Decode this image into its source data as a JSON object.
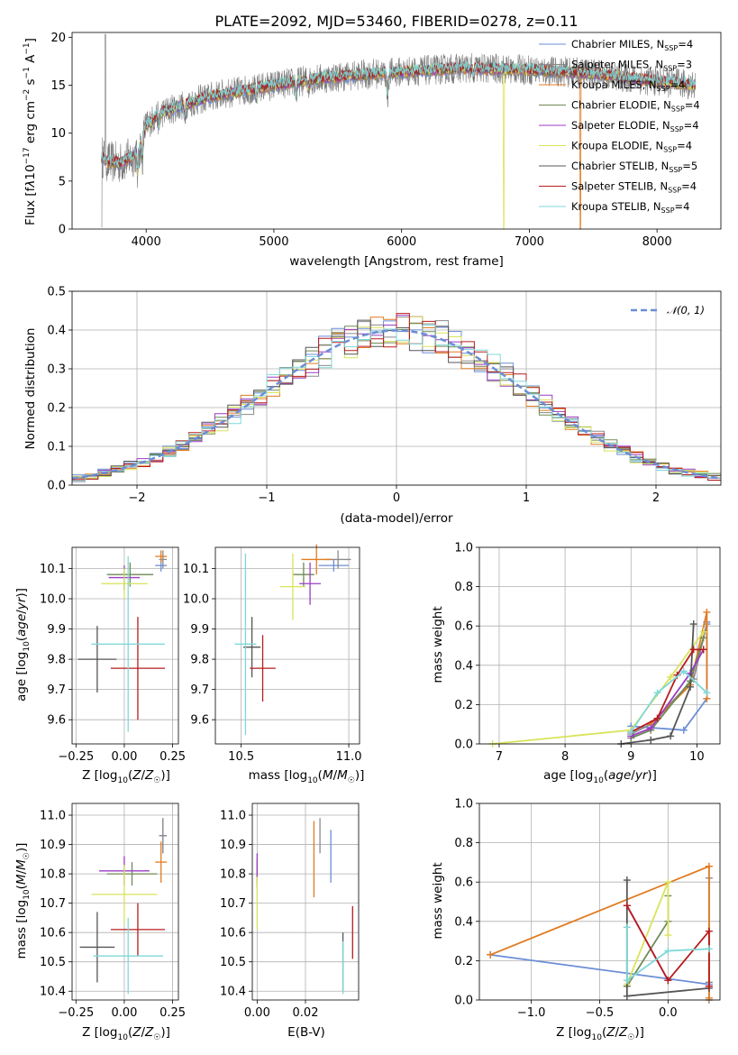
{
  "figure": {
    "title": "PLATE=2092, MJD=53460, FIBERID=0278, z=0.11",
    "colors": {
      "Chabrier MILES": "#6b8ed6",
      "Salpeter MILES": "#8a8a8a",
      "Kroupa MILES": "#e07b22",
      "Chabrier ELODIE": "#6e8a53",
      "Salpeter ELODIE": "#9b3cc4",
      "Kroupa ELODIE": "#d9e35a",
      "Chabrier STELIB": "#555555",
      "Salpeter STELIB": "#b71c1c",
      "Kroupa STELIB": "#7fd8d8"
    }
  },
  "chart_data": [
    {
      "type": "line",
      "panel": "spectrum",
      "title": "PLATE=2092, MJD=53460, FIBERID=0278, z=0.11",
      "xlabel": "wavelength [Angstrom, rest frame]",
      "ylabel": "Flux [f_λ 10^-17 erg cm^-2 s^-1 A^-1]",
      "xlim": [
        3420,
        8500
      ],
      "ylim": [
        0,
        20.5
      ],
      "xticks": [
        4000,
        5000,
        6000,
        7000,
        8000
      ],
      "yticks": [
        0,
        5,
        10,
        15,
        20
      ],
      "grid": false,
      "legend_position": "upper right",
      "legend": [
        {
          "label": "Chabrier MILES",
          "nssp": "4"
        },
        {
          "label": "Salpeter MILES",
          "nssp": "3"
        },
        {
          "label": "Kroupa MILES",
          "nssp": "4"
        },
        {
          "label": "Chabrier ELODIE",
          "nssp": "4"
        },
        {
          "label": "Salpeter ELODIE",
          "nssp": "4"
        },
        {
          "label": "Kroupa ELODIE",
          "nssp": "4"
        },
        {
          "label": "Chabrier STELIB",
          "nssp": "5"
        },
        {
          "label": "Salpeter STELIB",
          "nssp": "4"
        },
        {
          "label": "Kroupa STELIB",
          "nssp": "4"
        }
      ],
      "continuum": {
        "x": [
          3650,
          3700,
          3800,
          3900,
          3950,
          4000,
          4100,
          4200,
          4300,
          4500,
          4700,
          5000,
          5300,
          5600,
          6000,
          6500,
          7000,
          7500,
          8000,
          8300
        ],
        "y": [
          7.6,
          7.0,
          6.9,
          7.6,
          8.6,
          10.8,
          12.0,
          12.5,
          13.0,
          13.8,
          14.3,
          15.0,
          15.6,
          16.0,
          16.4,
          16.8,
          16.6,
          16.2,
          15.4,
          15.0
        ]
      },
      "absorption_lines": [
        {
          "x": 3934,
          "depth": 2.5
        },
        {
          "x": 3969,
          "depth": 2.2
        },
        {
          "x": 4102,
          "depth": 1.2
        },
        {
          "x": 4300,
          "depth": 1.5
        },
        {
          "x": 4861,
          "depth": 1.1
        },
        {
          "x": 5175,
          "depth": 1.5
        },
        {
          "x": 5270,
          "depth": 0.7
        },
        {
          "x": 5890,
          "depth": 2.5
        },
        {
          "x": 6563,
          "depth": 1.0
        }
      ]
    },
    {
      "type": "histogram",
      "panel": "residuals",
      "xlabel": "(data-model)/error",
      "ylabel": "Normed distribution",
      "xlim": [
        -2.5,
        2.5
      ],
      "ylim": [
        0,
        0.5
      ],
      "xticks": [
        -2,
        -1,
        0,
        1,
        2
      ],
      "yticks": [
        0.0,
        0.1,
        0.2,
        0.3,
        0.4,
        0.5
      ],
      "grid": true,
      "bin_width": 0.1,
      "legend_position": "upper right",
      "reference_curve": {
        "label": "N(0,1)",
        "mean": 0,
        "sigma": 1
      }
    },
    {
      "type": "scatter",
      "panel": "age-vs-Z",
      "xlabel": "Z [log10(Z/Z☉)]",
      "ylabel": "age [log10(age/yr)]",
      "xlim": [
        -0.27,
        0.28
      ],
      "ylim": [
        9.52,
        10.17
      ],
      "xticks": [
        -0.25,
        0.0,
        0.25
      ],
      "yticks": [
        9.6,
        9.7,
        9.8,
        9.9,
        10.0,
        10.1
      ],
      "grid": true,
      "points": [
        {
          "model": "Chabrier MILES",
          "x": 0.19,
          "y": 10.11,
          "xerr": 0.03,
          "yerr": 0.02
        },
        {
          "model": "Salpeter MILES",
          "x": 0.2,
          "y": 10.13,
          "xerr": 0.02,
          "yerr": 0.03
        },
        {
          "model": "Kroupa MILES",
          "x": 0.19,
          "y": 10.14,
          "xerr": 0.03,
          "yerr": 0.02
        },
        {
          "model": "Chabrier ELODIE",
          "x": 0.03,
          "y": 10.08,
          "xerr": 0.12,
          "yerr": 0.04
        },
        {
          "model": "Salpeter ELODIE",
          "x": 0.0,
          "y": 10.07,
          "xerr": 0.08,
          "yerr": 0.04
        },
        {
          "model": "Kroupa ELODIE",
          "x": 0.0,
          "y": 10.05,
          "xerr": 0.12,
          "yerr": 0.05
        },
        {
          "model": "Chabrier STELIB",
          "x": -0.14,
          "y": 9.8,
          "xerr": 0.1,
          "yerr": 0.11
        },
        {
          "model": "Salpeter STELIB",
          "x": 0.07,
          "y": 9.77,
          "xerr": 0.14,
          "yerr": 0.17
        },
        {
          "model": "Kroupa STELIB",
          "x": 0.02,
          "y": 9.85,
          "xerr": 0.19,
          "yerr": 0.29
        }
      ]
    },
    {
      "type": "scatter",
      "panel": "age-vs-mass",
      "xlabel": "mass [log10(M/M☉)]",
      "ylabel": "",
      "xlim": [
        10.38,
        11.05
      ],
      "ylim": [
        9.52,
        10.17
      ],
      "xticks": [
        10.5,
        11.0
      ],
      "yticks": [
        9.6,
        9.7,
        9.8,
        9.9,
        10.0,
        10.1
      ],
      "grid": true,
      "points": [
        {
          "model": "Chabrier MILES",
          "x": 10.93,
          "y": 10.11,
          "xerr": 0.07,
          "yerr": 0.02
        },
        {
          "model": "Salpeter MILES",
          "x": 10.95,
          "y": 10.13,
          "xerr": 0.06,
          "yerr": 0.03
        },
        {
          "model": "Kroupa MILES",
          "x": 10.85,
          "y": 10.13,
          "xerr": 0.07,
          "yerr": 0.05
        },
        {
          "model": "Chabrier ELODIE",
          "x": 10.79,
          "y": 10.08,
          "xerr": 0.05,
          "yerr": 0.04
        },
        {
          "model": "Salpeter ELODIE",
          "x": 10.82,
          "y": 10.05,
          "xerr": 0.05,
          "yerr": 0.07
        },
        {
          "model": "Kroupa ELODIE",
          "x": 10.74,
          "y": 10.04,
          "xerr": 0.06,
          "yerr": 0.11
        },
        {
          "model": "Chabrier STELIB",
          "x": 10.55,
          "y": 9.84,
          "xerr": 0.04,
          "yerr": 0.1
        },
        {
          "model": "Salpeter STELIB",
          "x": 10.6,
          "y": 9.77,
          "xerr": 0.06,
          "yerr": 0.11
        },
        {
          "model": "Kroupa STELIB",
          "x": 10.52,
          "y": 9.85,
          "xerr": 0.05,
          "yerr": 0.3
        }
      ]
    },
    {
      "type": "line",
      "panel": "mass-weight-vs-age",
      "xlabel": "age [log10(age/yr)]",
      "ylabel": "mass weight",
      "xlim": [
        6.7,
        10.35
      ],
      "ylim": [
        0,
        1.0
      ],
      "xticks": [
        7,
        8,
        9,
        10
      ],
      "yticks": [
        0.0,
        0.2,
        0.4,
        0.6,
        0.8,
        1.0
      ],
      "grid": true,
      "series": [
        {
          "model": "Chabrier MILES",
          "x": [
            9.0,
            9.8,
            10.15,
            10.15
          ],
          "y": [
            0.09,
            0.07,
            0.23,
            0.62
          ]
        },
        {
          "model": "Salpeter MILES",
          "x": [
            9.0,
            9.3,
            9.95,
            10.15
          ],
          "y": [
            0.05,
            0.1,
            0.33,
            0.61
          ]
        },
        {
          "model": "Kroupa MILES",
          "x": [
            9.3,
            9.9,
            10.15,
            10.15
          ],
          "y": [
            0.1,
            0.3,
            0.67,
            0.23
          ]
        },
        {
          "model": "Chabrier ELODIE",
          "x": [
            9.0,
            9.3,
            9.9,
            10.1
          ],
          "y": [
            0.03,
            0.07,
            0.32,
            0.54
          ]
        },
        {
          "model": "Salpeter ELODIE",
          "x": [
            9.0,
            9.3,
            9.9,
            10.1
          ],
          "y": [
            0.04,
            0.08,
            0.36,
            0.48
          ]
        },
        {
          "model": "Kroupa ELODIE",
          "x": [
            6.9,
            9.0,
            9.6,
            10.1
          ],
          "y": [
            0.0,
            0.07,
            0.34,
            0.57
          ]
        },
        {
          "model": "Chabrier STELIB",
          "x": [
            8.85,
            9.3,
            9.6,
            9.9,
            9.95
          ],
          "y": [
            0.0,
            0.02,
            0.04,
            0.29,
            0.61
          ]
        },
        {
          "model": "Salpeter STELIB",
          "x": [
            9.0,
            9.4,
            9.7,
            9.95,
            10.1
          ],
          "y": [
            0.06,
            0.13,
            0.35,
            0.48,
            0.48
          ]
        },
        {
          "model": "Kroupa STELIB",
          "x": [
            9.0,
            9.4,
            9.8,
            10.15
          ],
          "y": [
            0.06,
            0.26,
            0.37,
            0.26
          ]
        }
      ]
    },
    {
      "type": "scatter",
      "panel": "mass-vs-Z",
      "xlabel": "Z [log10(Z/Z☉)]",
      "ylabel": "mass [log10(M/M☉)]",
      "xlim": [
        -0.27,
        0.28
      ],
      "ylim": [
        10.37,
        11.04
      ],
      "xticks": [
        -0.25,
        0.0,
        0.25
      ],
      "yticks": [
        10.4,
        10.5,
        10.6,
        10.7,
        10.8,
        10.9,
        11.0
      ],
      "grid": true,
      "points": [
        {
          "model": "Chabrier MILES",
          "x": 0.2,
          "y": 10.93,
          "xerr": 0.02,
          "yerr": 0.06
        },
        {
          "model": "Salpeter MILES",
          "x": 0.2,
          "y": 10.93,
          "xerr": 0.02,
          "yerr": 0.06
        },
        {
          "model": "Kroupa MILES",
          "x": 0.19,
          "y": 10.84,
          "xerr": 0.03,
          "yerr": 0.07
        },
        {
          "model": "Chabrier ELODIE",
          "x": 0.04,
          "y": 10.8,
          "xerr": 0.13,
          "yerr": 0.04
        },
        {
          "model": "Salpeter ELODIE",
          "x": 0.0,
          "y": 10.81,
          "xerr": 0.13,
          "yerr": 0.05
        },
        {
          "model": "Kroupa ELODIE",
          "x": 0.0,
          "y": 10.73,
          "xerr": 0.17,
          "yerr": 0.1
        },
        {
          "model": "Chabrier STELIB",
          "x": -0.14,
          "y": 10.55,
          "xerr": 0.09,
          "yerr": 0.12
        },
        {
          "model": "Salpeter STELIB",
          "x": 0.07,
          "y": 10.61,
          "xerr": 0.14,
          "yerr": 0.09
        },
        {
          "model": "Kroupa STELIB",
          "x": 0.02,
          "y": 10.52,
          "xerr": 0.18,
          "yerr": 0.13
        }
      ]
    },
    {
      "type": "scatter",
      "panel": "mass-vs-EBV",
      "xlabel": "E(B-V)",
      "ylabel": "",
      "xlim": [
        -0.002,
        0.042
      ],
      "ylim": [
        10.37,
        11.04
      ],
      "xticks": [
        0.0,
        0.02
      ],
      "yticks": [
        10.4,
        10.5,
        10.6,
        10.7,
        10.8,
        10.9,
        11.0
      ],
      "grid": true,
      "points": [
        {
          "model": "Chabrier MILES",
          "x": 0.0305,
          "y": 10.86,
          "yerr": 0.09
        },
        {
          "model": "Salpeter MILES",
          "x": 0.026,
          "y": 10.93,
          "yerr": 0.06
        },
        {
          "model": "Kroupa MILES",
          "x": 0.0235,
          "y": 10.85,
          "yerr": 0.13
        },
        {
          "model": "Chabrier ELODIE",
          "x": 0.0,
          "y": 10.8,
          "yerr": 0.05
        },
        {
          "model": "Salpeter ELODIE",
          "x": 0.0,
          "y": 10.82,
          "yerr": 0.05
        },
        {
          "model": "Kroupa ELODIE",
          "x": 0.0,
          "y": 10.7,
          "yerr": 0.09
        },
        {
          "model": "Chabrier STELIB",
          "x": 0.0355,
          "y": 10.5,
          "yerr": 0.1
        },
        {
          "model": "Salpeter STELIB",
          "x": 0.0395,
          "y": 10.6,
          "yerr": 0.09
        },
        {
          "model": "Kroupa STELIB",
          "x": 0.0355,
          "y": 10.48,
          "yerr": 0.09
        }
      ]
    },
    {
      "type": "line",
      "panel": "mass-weight-vs-Z",
      "xlabel": "Z [log10(Z/Z☉)]",
      "ylabel": "mass weight",
      "xlim": [
        -1.38,
        0.38
      ],
      "ylim": [
        0,
        1.0
      ],
      "xticks": [
        -1.0,
        -0.5,
        0.0
      ],
      "yticks": [
        0.0,
        0.2,
        0.4,
        0.6,
        0.8,
        1.0
      ],
      "grid": true,
      "series": [
        {
          "model": "Chabrier MILES",
          "x": [
            -1.3,
            0.3
          ],
          "y": [
            0.23,
            0.08
          ]
        },
        {
          "model": "Salpeter MILES",
          "x": [
            0.3,
            0.3,
            0.3
          ],
          "y": [
            0.62,
            0.09,
            0.0
          ]
        },
        {
          "model": "Kroupa MILES",
          "x": [
            -1.3,
            0.3,
            0.3
          ],
          "y": [
            0.23,
            0.68,
            0.01
          ]
        },
        {
          "model": "Chabrier ELODIE",
          "x": [
            -0.3,
            0.0,
            0.0
          ],
          "y": [
            0.07,
            0.4,
            0.53
          ]
        },
        {
          "model": "Salpeter ELODIE",
          "x": [
            -0.3,
            0.0
          ],
          "y": [
            0.48,
            0.1
          ]
        },
        {
          "model": "Kroupa ELODIE",
          "x": [
            -0.3,
            0.0,
            0.0
          ],
          "y": [
            0.08,
            0.6,
            0.33
          ]
        },
        {
          "model": "Chabrier STELIB",
          "x": [
            -0.3,
            -0.3,
            0.3
          ],
          "y": [
            0.61,
            0.02,
            0.06
          ]
        },
        {
          "model": "Salpeter STELIB",
          "x": [
            -0.3,
            0.0,
            0.3,
            0.3
          ],
          "y": [
            0.48,
            0.1,
            0.35,
            0.07
          ]
        },
        {
          "model": "Kroupa STELIB",
          "x": [
            -0.3,
            -0.3,
            0.0,
            0.3
          ],
          "y": [
            0.37,
            0.1,
            0.25,
            0.26
          ]
        }
      ]
    }
  ]
}
